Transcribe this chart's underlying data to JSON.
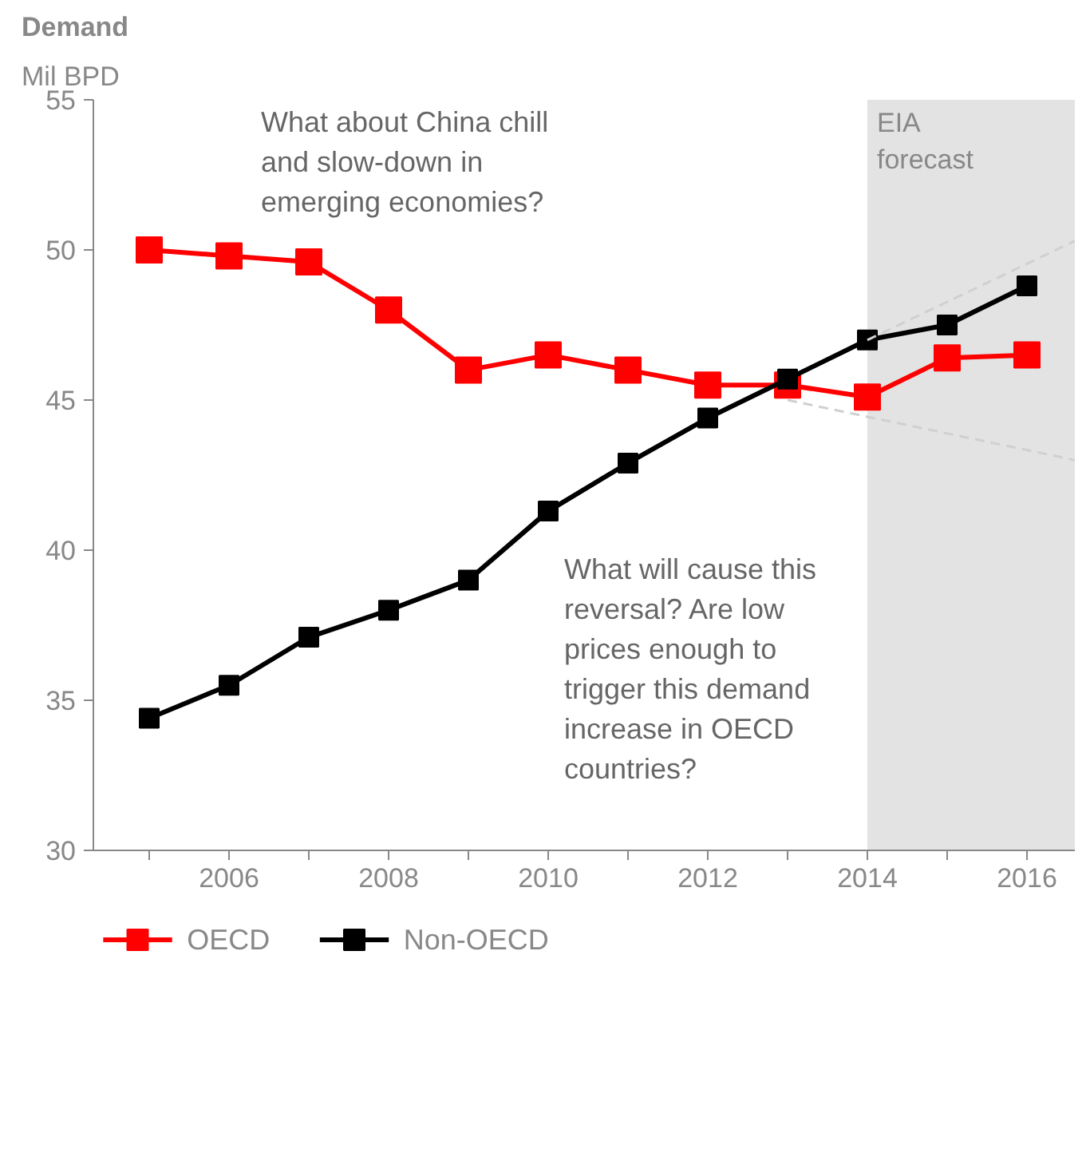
{
  "chart_data": {
    "type": "line",
    "title": "Demand",
    "subtitle": "Mil BPD",
    "x": [
      2005,
      2006,
      2007,
      2008,
      2009,
      2010,
      2011,
      2012,
      2013,
      2014,
      2015,
      2016
    ],
    "series": [
      {
        "name": "OECD",
        "color": "#ff0000",
        "values": [
          50.0,
          49.8,
          49.6,
          48.0,
          46.0,
          46.5,
          46.0,
          45.5,
          45.5,
          45.1,
          46.4,
          46.5
        ]
      },
      {
        "name": "Non-OECD",
        "color": "#000000",
        "values": [
          34.4,
          35.5,
          37.1,
          38.0,
          39.0,
          41.3,
          42.9,
          44.4,
          45.7,
          47.0,
          47.5,
          48.8
        ]
      },
      {
        "color": "#d0d0d0",
        "x": [
          2014,
          2016.6
        ],
        "values": [
          47.0,
          50.3
        ],
        "line_style": "dashed",
        "marker": "none"
      },
      {
        "color": "#d0d0d0",
        "x": [
          2013,
          2016.6
        ],
        "values": [
          45.0,
          43.0
        ],
        "line_style": "dashed",
        "marker": "none"
      }
    ],
    "marker": "square",
    "line_style": "solid",
    "bands": [
      {
        "axis": "x",
        "from": 2014,
        "to": 2016.6,
        "label": "EIA forecast",
        "color": "#e3e3e3"
      }
    ],
    "annotations": [
      "What about China chill and slow-down in emerging economies?",
      "What will cause this reversal? Are low prices enough to trigger this demand increase in OECD countries?"
    ],
    "xlim": [
      2004.3,
      2016.6
    ],
    "ylim": [
      30,
      55
    ],
    "xticks": [
      {
        "value": 2005,
        "label": null
      },
      2006,
      {
        "value": 2007,
        "label": null
      },
      2008,
      {
        "value": 2009,
        "label": null
      },
      2010,
      {
        "value": 2011,
        "label": null
      },
      2012,
      {
        "value": 2013,
        "label": null
      },
      2014,
      {
        "value": 2015,
        "label": null
      },
      2016
    ],
    "yticks": [
      30,
      35,
      40,
      45,
      50,
      55
    ],
    "grid": false,
    "legend": "bottom"
  }
}
